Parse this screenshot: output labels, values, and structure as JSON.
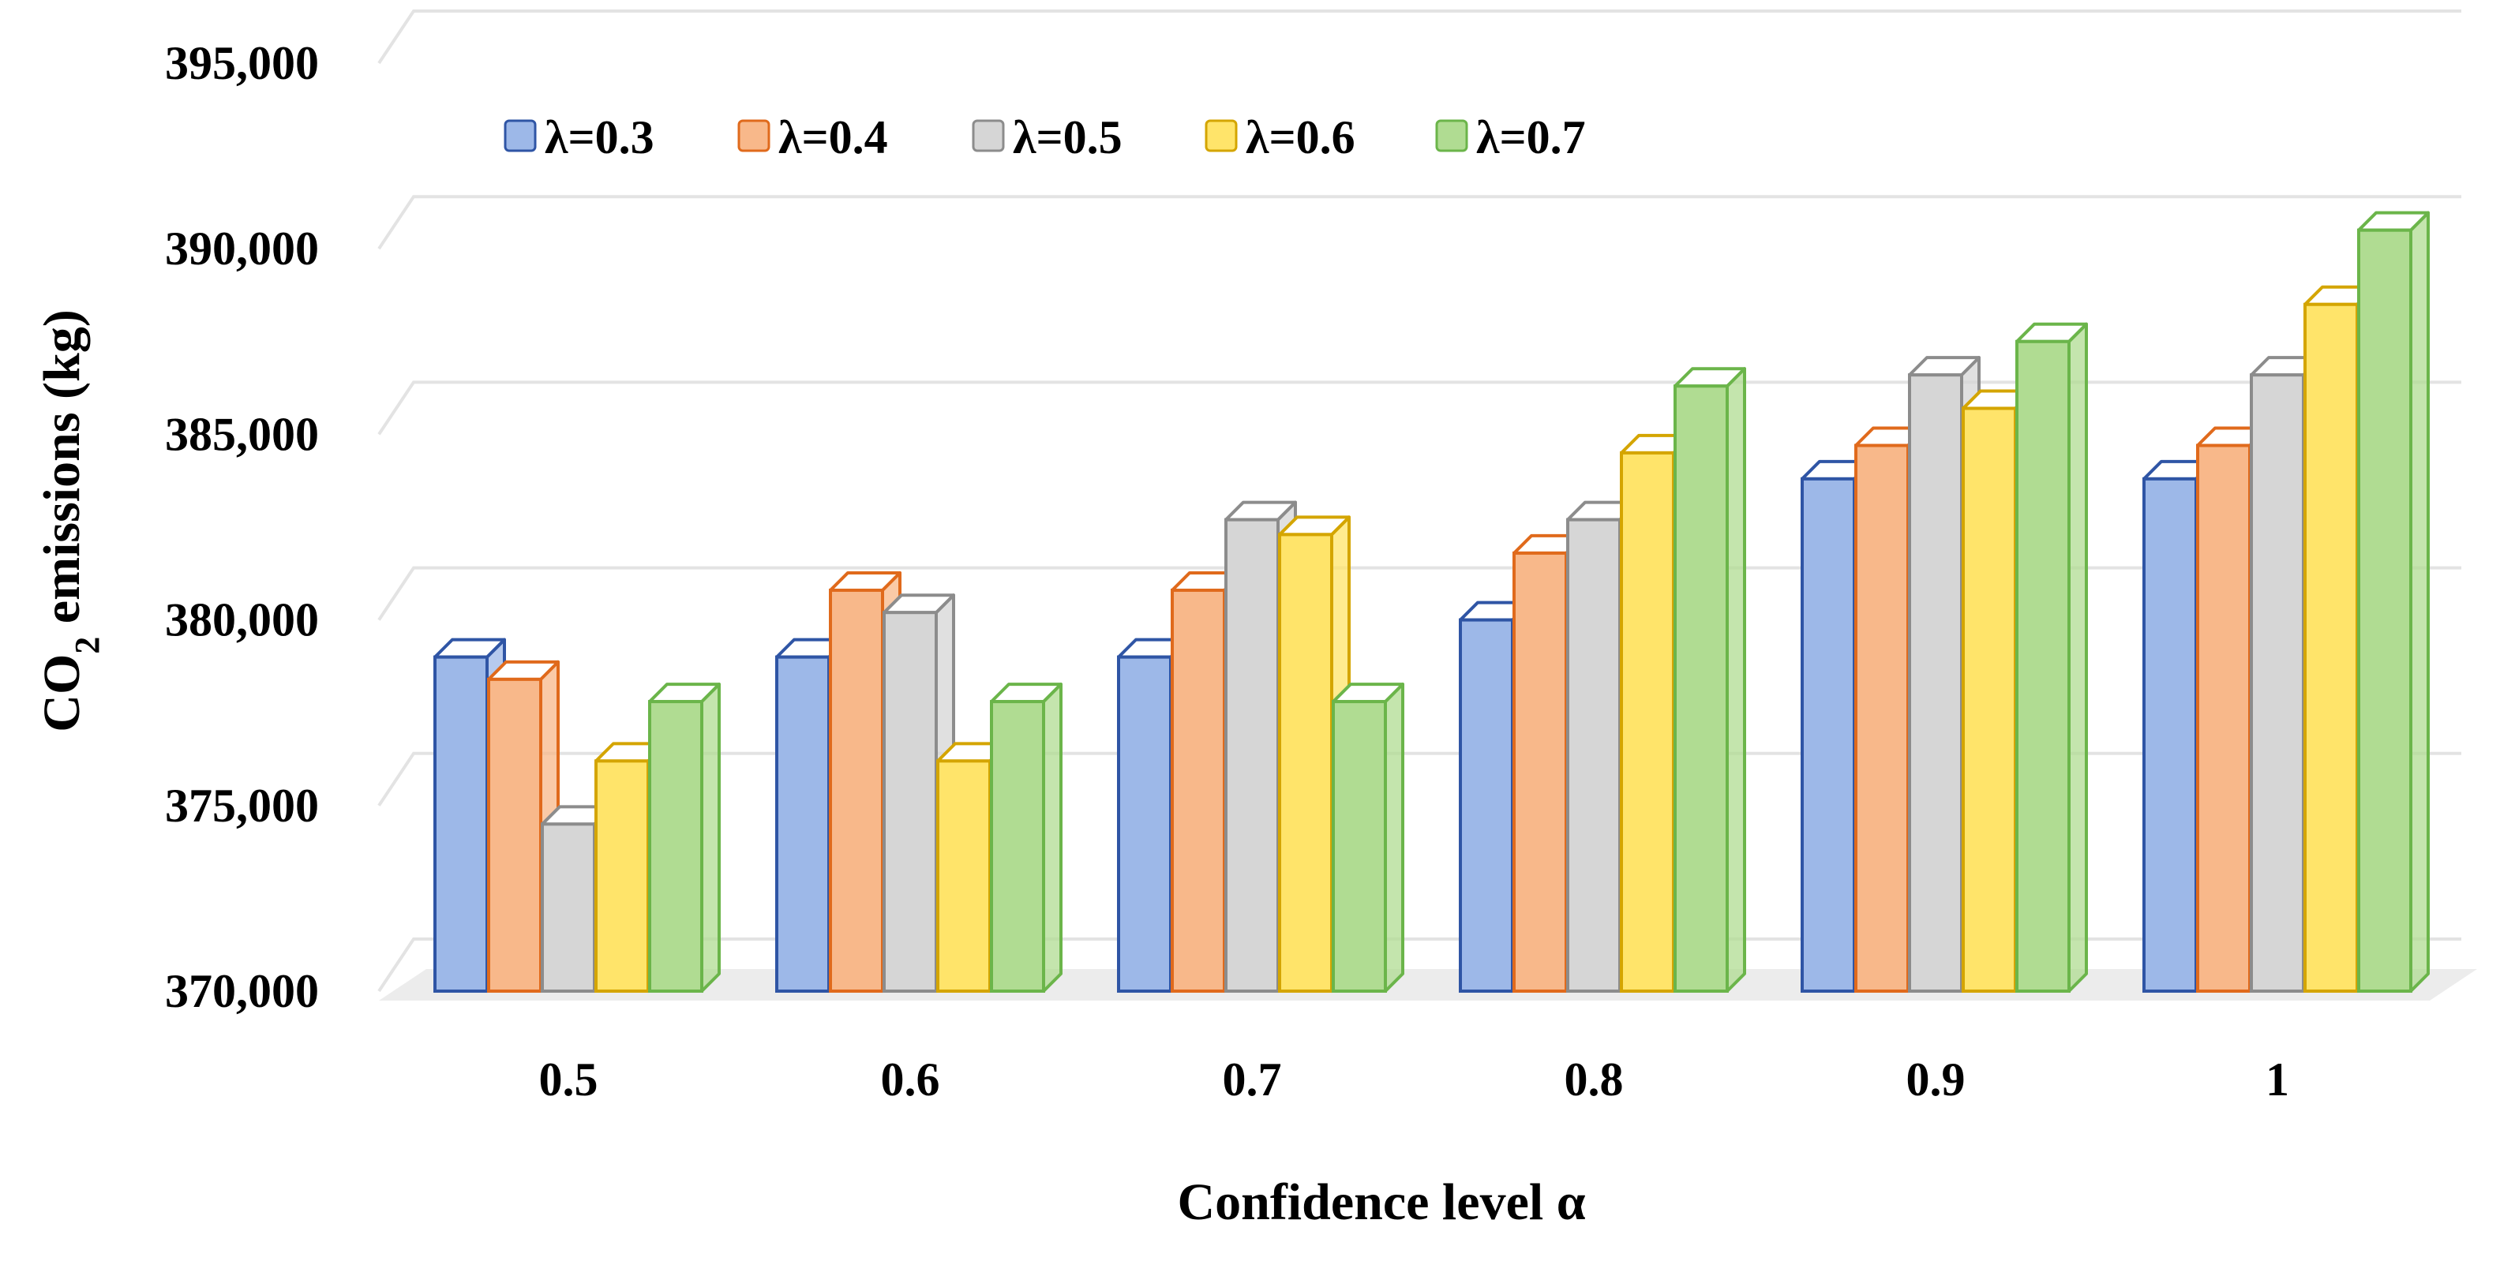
{
  "chart_data": {
    "type": "bar",
    "style": "3d-clustered-column",
    "xlabel": "Confidence level α",
    "ylabel_main": "CO",
    "ylabel_sub": "2",
    "ylabel_rest": " emissions (kg)",
    "categories": [
      "0.5",
      "0.6",
      "0.7",
      "0.8",
      "0.9",
      "1"
    ],
    "ylim": [
      370000,
      395000
    ],
    "yticks": [
      370000,
      375000,
      380000,
      385000,
      390000,
      395000
    ],
    "ytick_labels": [
      "370,000",
      "375,000",
      "380,000",
      "385,000",
      "390,000",
      "395,000"
    ],
    "grid": true,
    "legend_position": "top-left",
    "series": [
      {
        "name": "λ=0.3",
        "color": "#9DB8E8",
        "edge": "#2F55A5",
        "values": [
          379000,
          379000,
          379000,
          380000,
          383800,
          383800
        ]
      },
      {
        "name": "λ=0.4",
        "color": "#F8B88A",
        "edge": "#E06A1C",
        "values": [
          378400,
          380800,
          380800,
          381800,
          384700,
          384700
        ]
      },
      {
        "name": "λ=0.5",
        "color": "#D6D6D6",
        "edge": "#8C8C8C",
        "values": [
          374500,
          380200,
          382700,
          382700,
          386600,
          386600
        ]
      },
      {
        "name": "λ=0.6",
        "color": "#FFE46A",
        "edge": "#D4A500",
        "values": [
          376200,
          376200,
          382300,
          384500,
          385700,
          388500
        ]
      },
      {
        "name": "λ=0.7",
        "color": "#B0DC92",
        "edge": "#6BB54A",
        "values": [
          377800,
          377800,
          377800,
          386300,
          387500,
          390500
        ]
      }
    ]
  }
}
